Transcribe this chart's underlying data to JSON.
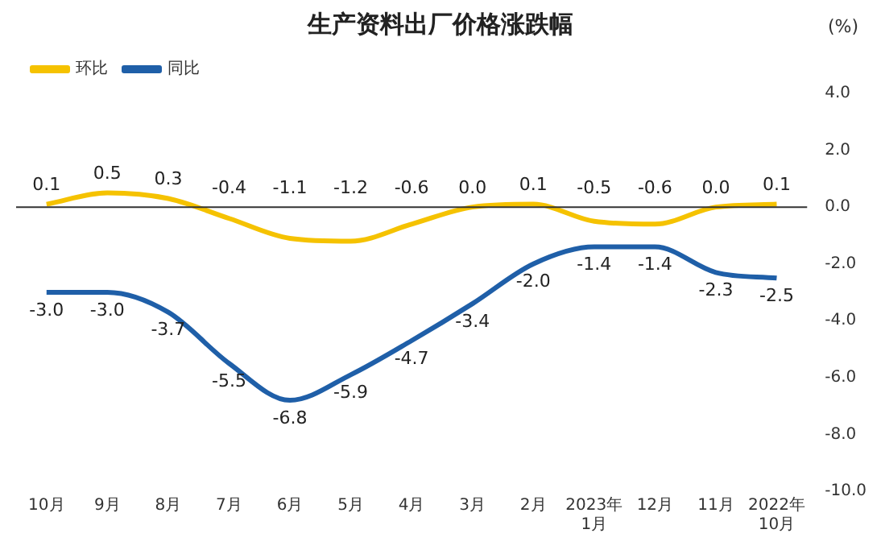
{
  "chart_data": {
    "type": "line",
    "title": "生产资料出厂价格涨跌幅",
    "ylabel": "(%)",
    "categories": [
      "10月",
      "9月",
      "8月",
      "7月",
      "6月",
      "5月",
      "4月",
      "3月",
      "2月",
      "2023年\n1月",
      "12月",
      "11月",
      "2022年\n10月"
    ],
    "series": [
      {
        "name": "环比",
        "color": "#f5c200",
        "values": [
          0.1,
          0.5,
          0.3,
          -0.4,
          -1.1,
          -1.2,
          -0.6,
          0.0,
          0.1,
          -0.5,
          -0.6,
          0.0,
          0.1
        ],
        "value_labels": [
          "0.1",
          "0.5",
          "0.3",
          "-0.4",
          "-1.1",
          "-1.2",
          "-0.6",
          "0.0",
          "0.1",
          "-0.5",
          "-0.6",
          "0.0",
          "0.1"
        ]
      },
      {
        "name": "同比",
        "color": "#1f5fa8",
        "values": [
          -3.0,
          -3.0,
          -3.7,
          -5.5,
          -6.8,
          -5.9,
          -4.7,
          -3.4,
          -2.0,
          -1.4,
          -1.4,
          -2.3,
          -2.5
        ],
        "value_labels": [
          "-3.0",
          "-3.0",
          "-3.7",
          "-5.5",
          "-6.8",
          "-5.9",
          "-4.7",
          "-3.4",
          "-2.0",
          "-1.4",
          "-1.4",
          "-2.3",
          "-2.5"
        ]
      }
    ],
    "ylim": [
      -10,
      4
    ],
    "yticks": [
      {
        "value": 4,
        "label": "4.0"
      },
      {
        "value": 2,
        "label": "2.0"
      },
      {
        "value": 0,
        "label": "0.0"
      },
      {
        "value": -2,
        "label": "-2.0"
      },
      {
        "value": -4,
        "label": "-4.0"
      },
      {
        "value": -6,
        "label": "-6.0"
      },
      {
        "value": -8,
        "label": "-8.0"
      },
      {
        "value": -10,
        "label": "-10.0"
      }
    ],
    "ref_lines": [
      {
        "axis": "y",
        "value": 0,
        "color": "#333333"
      }
    ],
    "grid": false,
    "legend": "top left",
    "marker": "none",
    "line_style": "solid"
  }
}
